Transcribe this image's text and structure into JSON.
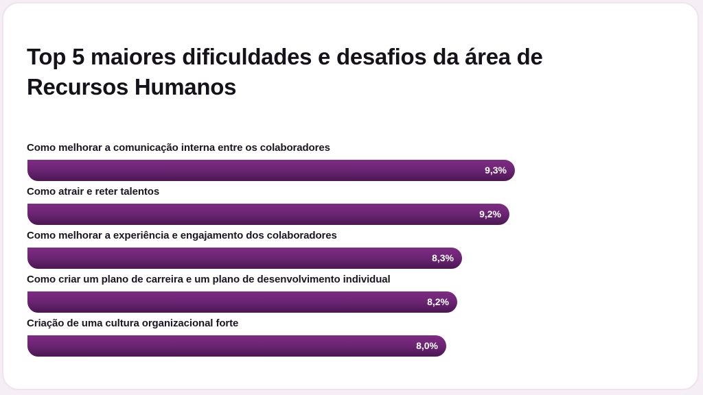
{
  "chart_data": {
    "type": "bar",
    "orientation": "horizontal",
    "title": "Top 5 maiores dificuldades e desafios da área de Recursos Humanos",
    "categories": [
      "Como melhorar a comunicação interna entre os colaboradores",
      "Como atrair e reter talentos",
      "Como melhorar a experiência e engajamento dos colaboradores",
      "Como criar um plano de carreira e um plano de desenvolvimento individual",
      "Criação de uma cultura organizacional forte"
    ],
    "values": [
      9.3,
      9.2,
      8.3,
      8.2,
      8.0
    ],
    "value_labels": [
      "9,3%",
      "9,2%",
      "8,3%",
      "8,2%",
      "8,0%"
    ],
    "unit": "%",
    "xlim": [
      0,
      12
    ],
    "grid": false,
    "legend": "none",
    "bar_color": "#6d2575"
  }
}
